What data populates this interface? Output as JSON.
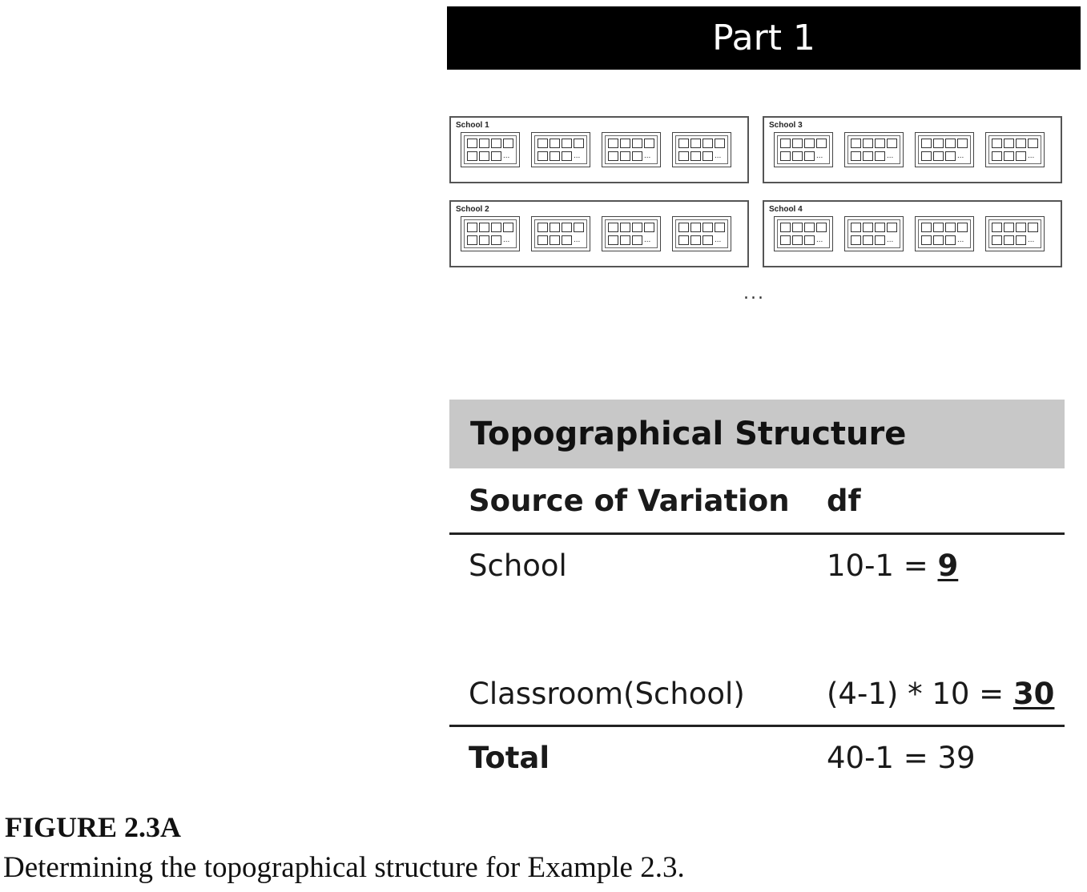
{
  "banner": {
    "title": "Part 1"
  },
  "schools": [
    {
      "label": "School 1"
    },
    {
      "label": "School 3"
    },
    {
      "label": "School 2"
    },
    {
      "label": "School 4"
    }
  ],
  "classroom": {
    "ellipsis": "..."
  },
  "continuation": "...",
  "table": {
    "title": "Topographical Structure",
    "headers": {
      "source": "Source of Variation",
      "df": "df"
    },
    "rows": [
      {
        "source": "School",
        "df_prefix": "10-1 = ",
        "df_result": "9"
      },
      {
        "source": "Classroom(School)",
        "df_prefix": "(4-1) * 10 = ",
        "df_result": "30"
      }
    ],
    "total": {
      "source": "Total",
      "df": "40-1 = 39"
    }
  },
  "figure": {
    "title": "FIGURE 2.3A",
    "caption": "Determining the topographical structure for Example 2.3."
  }
}
